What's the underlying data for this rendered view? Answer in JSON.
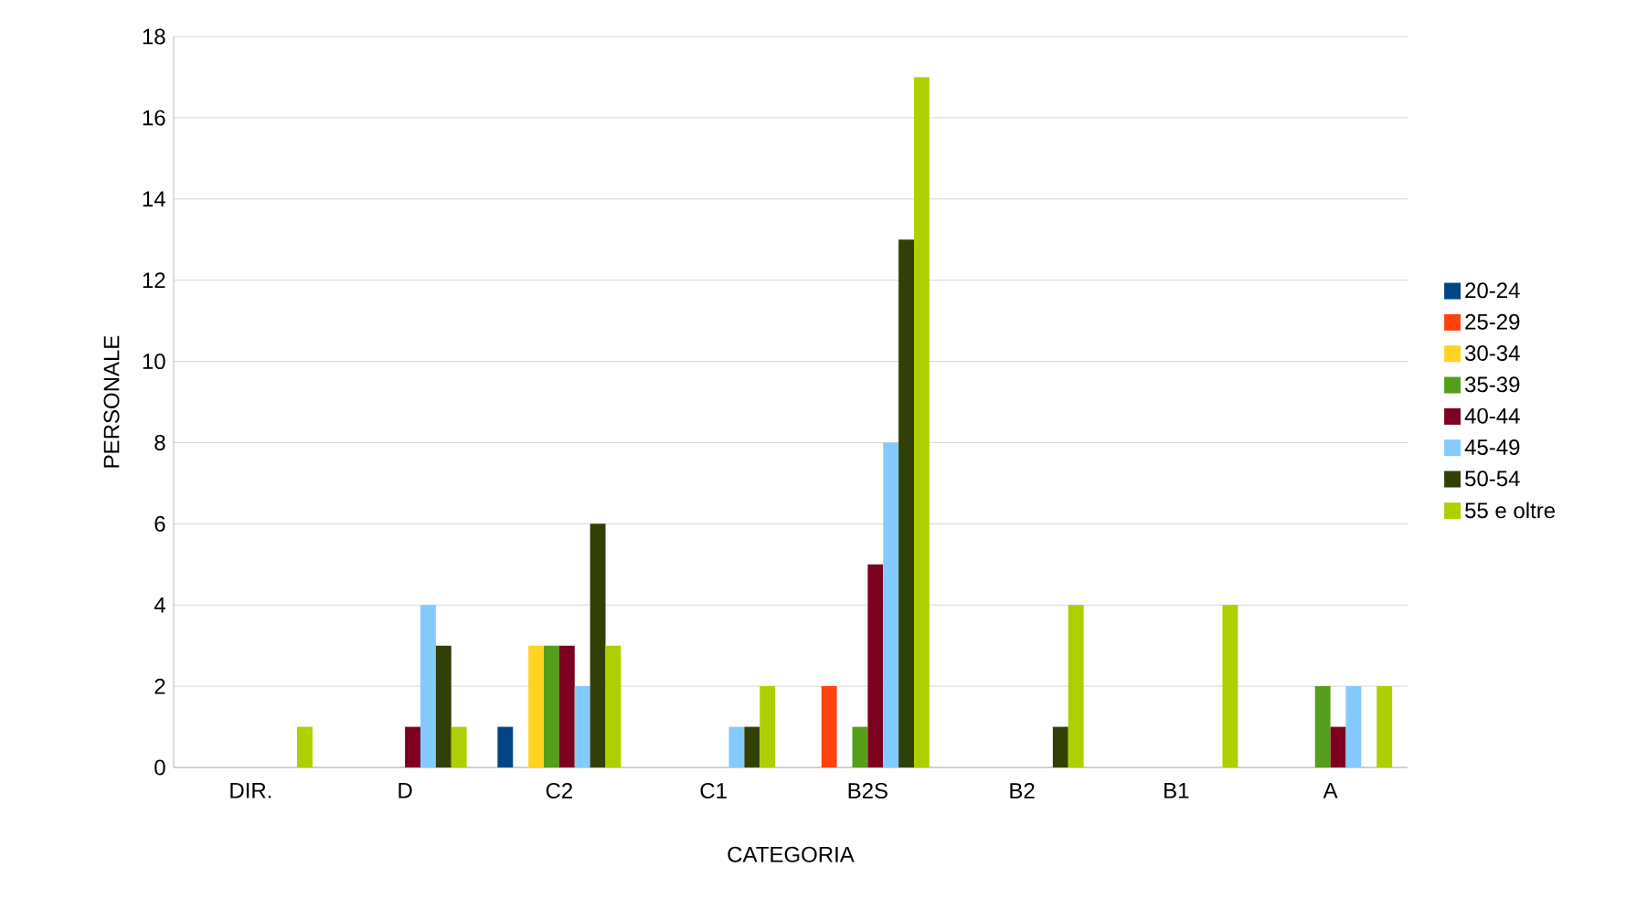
{
  "chart_data": {
    "type": "bar",
    "xlabel": "CATEGORIA",
    "ylabel": "PERSONALE",
    "categories": [
      "DIR.",
      "D",
      "C2",
      "C1",
      "B2S",
      "B2",
      "B1",
      "A"
    ],
    "series": [
      {
        "name": "20-24",
        "color": "#004586",
        "values": [
          0,
          0,
          1,
          0,
          0,
          0,
          0,
          0
        ]
      },
      {
        "name": "25-29",
        "color": "#ff420e",
        "values": [
          0,
          0,
          0,
          0,
          2,
          0,
          0,
          0
        ]
      },
      {
        "name": "30-34",
        "color": "#ffd320",
        "values": [
          0,
          0,
          3,
          0,
          0,
          0,
          0,
          0
        ]
      },
      {
        "name": "35-39",
        "color": "#579d1c",
        "values": [
          0,
          0,
          3,
          0,
          1,
          0,
          0,
          2
        ]
      },
      {
        "name": "40-44",
        "color": "#7e0021",
        "values": [
          0,
          1,
          3,
          0,
          5,
          0,
          0,
          1
        ]
      },
      {
        "name": "45-49",
        "color": "#83caff",
        "values": [
          0,
          4,
          2,
          1,
          8,
          0,
          0,
          2
        ]
      },
      {
        "name": "50-54",
        "color": "#314004",
        "values": [
          0,
          3,
          6,
          1,
          13,
          1,
          0,
          0
        ]
      },
      {
        "name": "55 e oltre",
        "color": "#aecf00",
        "values": [
          1,
          1,
          3,
          2,
          17,
          4,
          4,
          2
        ]
      }
    ],
    "ylim": [
      0,
      18
    ],
    "yticks": [
      0,
      2,
      4,
      6,
      8,
      10,
      12,
      14,
      16,
      18
    ],
    "grid": "y",
    "legend": "right"
  }
}
